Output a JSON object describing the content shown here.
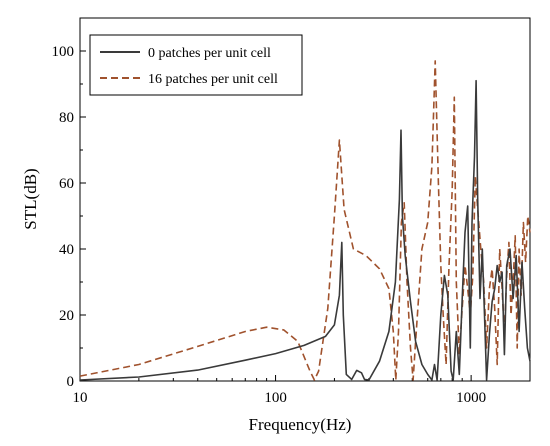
{
  "chart_data": {
    "type": "line",
    "xlabel": "Frequency(Hz)",
    "ylabel": "STL(dB)",
    "xscale": "log",
    "xlim": [
      10,
      2000
    ],
    "ylim": [
      0,
      110
    ],
    "x_ticks": [
      10,
      100,
      1000
    ],
    "x_tick_labels": [
      "10",
      "100",
      "1000"
    ],
    "y_ticks": [
      0,
      20,
      40,
      60,
      80,
      100
    ],
    "y_tick_labels": [
      "0",
      "20",
      "40",
      "60",
      "80",
      "100"
    ],
    "grid": false,
    "legend_position": "top-left",
    "series": [
      {
        "name": "0 patches per unit cell",
        "color": "#3a3a3a",
        "style": "solid",
        "points": [
          [
            10,
            0.3
          ],
          [
            20,
            1.2
          ],
          [
            40,
            3.3
          ],
          [
            70,
            6.3
          ],
          [
            100,
            8.3
          ],
          [
            140,
            10.8
          ],
          [
            180,
            13.5
          ],
          [
            200,
            17
          ],
          [
            212,
            26
          ],
          [
            218,
            42
          ],
          [
            222,
            20
          ],
          [
            230,
            2
          ],
          [
            245,
            0.5
          ],
          [
            260,
            3.2
          ],
          [
            275,
            2.5
          ],
          [
            285,
            0.5
          ],
          [
            300,
            0.3
          ],
          [
            340,
            6
          ],
          [
            380,
            15
          ],
          [
            410,
            30
          ],
          [
            430,
            55
          ],
          [
            438,
            76
          ],
          [
            445,
            50
          ],
          [
            460,
            38
          ],
          [
            490,
            24
          ],
          [
            520,
            12
          ],
          [
            560,
            5
          ],
          [
            600,
            2
          ],
          [
            630,
            0.3
          ],
          [
            650,
            5
          ],
          [
            670,
            0.3
          ],
          [
            700,
            20
          ],
          [
            730,
            32
          ],
          [
            760,
            26
          ],
          [
            790,
            3
          ],
          [
            810,
            0.3
          ],
          [
            840,
            15
          ],
          [
            870,
            2
          ],
          [
            900,
            25
          ],
          [
            930,
            45
          ],
          [
            960,
            53
          ],
          [
            990,
            10
          ],
          [
            1010,
            48
          ],
          [
            1040,
            68
          ],
          [
            1060,
            91
          ],
          [
            1080,
            55
          ],
          [
            1110,
            25
          ],
          [
            1140,
            40
          ],
          [
            1170,
            20
          ],
          [
            1200,
            0.3
          ],
          [
            1240,
            14
          ],
          [
            1280,
            24
          ],
          [
            1320,
            28
          ],
          [
            1360,
            35
          ],
          [
            1400,
            30
          ],
          [
            1440,
            33
          ],
          [
            1480,
            8
          ],
          [
            1520,
            35
          ],
          [
            1580,
            40
          ],
          [
            1640,
            25
          ],
          [
            1700,
            38
          ],
          [
            1760,
            15
          ],
          [
            1820,
            36
          ],
          [
            1880,
            22
          ],
          [
            1940,
            10
          ],
          [
            2000,
            6
          ]
        ]
      },
      {
        "name": "16 patches per unit cell",
        "color": "#a0522d",
        "style": "dashed",
        "points": [
          [
            10,
            1.5
          ],
          [
            20,
            5
          ],
          [
            40,
            10.5
          ],
          [
            70,
            15
          ],
          [
            90,
            16.3
          ],
          [
            110,
            15.5
          ],
          [
            130,
            12
          ],
          [
            150,
            3
          ],
          [
            158,
            0.3
          ],
          [
            166,
            3
          ],
          [
            185,
            22
          ],
          [
            200,
            50
          ],
          [
            212,
            73
          ],
          [
            224,
            52
          ],
          [
            250,
            40
          ],
          [
            290,
            38
          ],
          [
            340,
            34
          ],
          [
            380,
            28
          ],
          [
            400,
            15
          ],
          [
            412,
            0.3
          ],
          [
            425,
            15
          ],
          [
            440,
            48
          ],
          [
            455,
            54
          ],
          [
            470,
            30
          ],
          [
            490,
            10
          ],
          [
            505,
            0.3
          ],
          [
            520,
            12
          ],
          [
            560,
            40
          ],
          [
            600,
            48
          ],
          [
            630,
            65
          ],
          [
            655,
            97
          ],
          [
            680,
            60
          ],
          [
            700,
            35
          ],
          [
            720,
            20
          ],
          [
            745,
            5
          ],
          [
            770,
            34
          ],
          [
            800,
            58
          ],
          [
            820,
            86
          ],
          [
            840,
            30
          ],
          [
            870,
            8
          ],
          [
            900,
            22
          ],
          [
            930,
            35
          ],
          [
            960,
            28
          ],
          [
            990,
            20
          ],
          [
            1020,
            32
          ],
          [
            1050,
            62
          ],
          [
            1080,
            52
          ],
          [
            1120,
            40
          ],
          [
            1160,
            30
          ],
          [
            1200,
            10
          ],
          [
            1240,
            28
          ],
          [
            1280,
            34
          ],
          [
            1320,
            22
          ],
          [
            1360,
            5
          ],
          [
            1400,
            40
          ],
          [
            1440,
            28
          ],
          [
            1480,
            14
          ],
          [
            1520,
            32
          ],
          [
            1560,
            42
          ],
          [
            1600,
            20
          ],
          [
            1640,
            30
          ],
          [
            1680,
            44
          ],
          [
            1720,
            10
          ],
          [
            1760,
            40
          ],
          [
            1800,
            26
          ],
          [
            1850,
            48
          ],
          [
            1900,
            36
          ],
          [
            1950,
            50
          ],
          [
            2000,
            45
          ]
        ]
      }
    ]
  }
}
